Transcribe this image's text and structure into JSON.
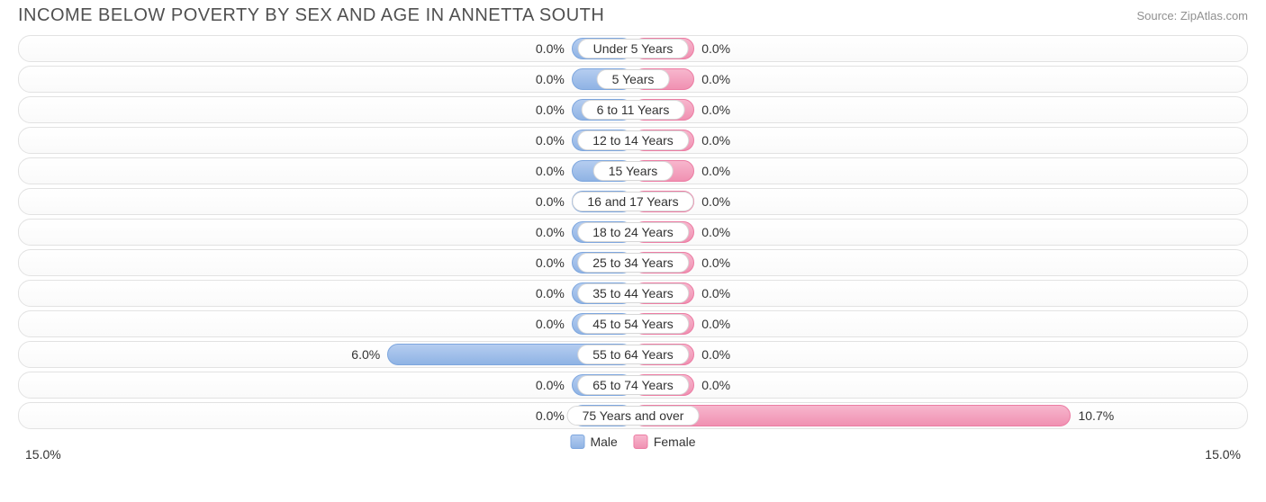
{
  "title": "INCOME BELOW POVERTY BY SEX AND AGE IN ANNETTA SOUTH",
  "source": "Source: ZipAtlas.com",
  "chart": {
    "type": "diverging-bar",
    "axis_max": 15.0,
    "axis_label_left": "15.0%",
    "axis_label_right": "15.0%",
    "min_bar_pct": 10.0,
    "male_color_top": "#b5cdf0",
    "male_color_bottom": "#8fb3e4",
    "male_border": "#7da6de",
    "female_color_top": "#f7b6cd",
    "female_color_bottom": "#f091b2",
    "female_border": "#ec7ca3",
    "track_border": "#e2e2e2",
    "background": "#ffffff",
    "label_fontsize": 14,
    "title_fontsize": 20,
    "title_color": "#505050",
    "source_color": "#909090",
    "text_color": "#333333",
    "rows": [
      {
        "category": "Under 5 Years",
        "male": 0.0,
        "female": 0.0,
        "male_label": "0.0%",
        "female_label": "0.0%"
      },
      {
        "category": "5 Years",
        "male": 0.0,
        "female": 0.0,
        "male_label": "0.0%",
        "female_label": "0.0%"
      },
      {
        "category": "6 to 11 Years",
        "male": 0.0,
        "female": 0.0,
        "male_label": "0.0%",
        "female_label": "0.0%"
      },
      {
        "category": "12 to 14 Years",
        "male": 0.0,
        "female": 0.0,
        "male_label": "0.0%",
        "female_label": "0.0%"
      },
      {
        "category": "15 Years",
        "male": 0.0,
        "female": 0.0,
        "male_label": "0.0%",
        "female_label": "0.0%"
      },
      {
        "category": "16 and 17 Years",
        "male": 0.0,
        "female": 0.0,
        "male_label": "0.0%",
        "female_label": "0.0%"
      },
      {
        "category": "18 to 24 Years",
        "male": 0.0,
        "female": 0.0,
        "male_label": "0.0%",
        "female_label": "0.0%"
      },
      {
        "category": "25 to 34 Years",
        "male": 0.0,
        "female": 0.0,
        "male_label": "0.0%",
        "female_label": "0.0%"
      },
      {
        "category": "35 to 44 Years",
        "male": 0.0,
        "female": 0.0,
        "male_label": "0.0%",
        "female_label": "0.0%"
      },
      {
        "category": "45 to 54 Years",
        "male": 0.0,
        "female": 0.0,
        "male_label": "0.0%",
        "female_label": "0.0%"
      },
      {
        "category": "55 to 64 Years",
        "male": 6.0,
        "female": 0.0,
        "male_label": "6.0%",
        "female_label": "0.0%"
      },
      {
        "category": "65 to 74 Years",
        "male": 0.0,
        "female": 0.0,
        "male_label": "0.0%",
        "female_label": "0.0%"
      },
      {
        "category": "75 Years and over",
        "male": 0.0,
        "female": 10.7,
        "male_label": "0.0%",
        "female_label": "10.7%"
      }
    ]
  },
  "legend": {
    "male": "Male",
    "female": "Female"
  }
}
